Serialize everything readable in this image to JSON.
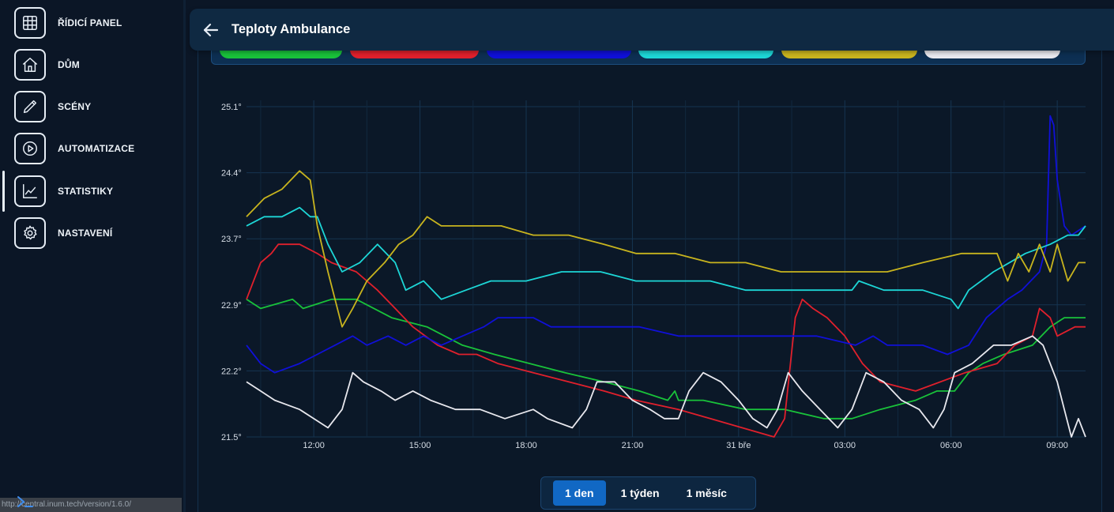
{
  "sidebar": {
    "items": [
      {
        "label": "ŘÍDICÍ PANEL",
        "icon": "grid-icon"
      },
      {
        "label": "DŮM",
        "icon": "home-icon"
      },
      {
        "label": "SCÉNY",
        "icon": "pencil-icon"
      },
      {
        "label": "AUTOMATIZACE",
        "icon": "play-circle-icon"
      },
      {
        "label": "STATISTIKY",
        "icon": "line-chart-icon",
        "active": true
      },
      {
        "label": "NASTAVENÍ",
        "icon": "gear-icon"
      }
    ]
  },
  "status_url": "http://central.inum.tech/version/1.6.0/",
  "header": {
    "title": "Teploty Ambulance"
  },
  "legend_colors": [
    "#19c23a",
    "#e0202c",
    "#1010d8",
    "#1dd6d6",
    "#c8b41e",
    "#e8e8ee"
  ],
  "range": {
    "options": [
      "1 den",
      "1 týden",
      "1 měsíc"
    ],
    "selected": "1 den"
  },
  "chart_data": {
    "type": "line",
    "x_ticks": [
      "12:00",
      "15:00",
      "18:00",
      "21:00",
      "31 bře",
      "03:00",
      "06:00",
      "09:00"
    ],
    "y_ticks": [
      "21.5°",
      "22.2°",
      "22.9°",
      "23.7°",
      "24.4°",
      "25.1°"
    ],
    "ylim": [
      21.5,
      25.1
    ],
    "xlim": [
      10.1,
      33.8
    ],
    "grid": true,
    "series": [
      {
        "color": "#19c23a",
        "points": [
          [
            10.1,
            23.0
          ],
          [
            10.5,
            22.9
          ],
          [
            11.4,
            23.0
          ],
          [
            11.7,
            22.9
          ],
          [
            12.5,
            23.0
          ],
          [
            13.2,
            23.0
          ],
          [
            14.2,
            22.8
          ],
          [
            15.2,
            22.7
          ],
          [
            16.2,
            22.5
          ],
          [
            17.1,
            22.4
          ],
          [
            18.1,
            22.3
          ],
          [
            19.1,
            22.2
          ],
          [
            20.2,
            22.1
          ],
          [
            21.2,
            22.0
          ],
          [
            22.0,
            21.9
          ],
          [
            22.2,
            22.0
          ],
          [
            22.3,
            21.9
          ],
          [
            23.0,
            21.9
          ],
          [
            24.2,
            21.8
          ],
          [
            25.3,
            21.8
          ],
          [
            26.4,
            21.7
          ],
          [
            27.2,
            21.7
          ],
          [
            28.0,
            21.8
          ],
          [
            29.0,
            21.9
          ],
          [
            29.6,
            22.0
          ],
          [
            30.1,
            22.0
          ],
          [
            30.5,
            22.2
          ],
          [
            30.9,
            22.3
          ],
          [
            31.5,
            22.4
          ],
          [
            32.3,
            22.5
          ],
          [
            32.8,
            22.7
          ],
          [
            33.2,
            22.8
          ],
          [
            33.8,
            22.8
          ]
        ]
      },
      {
        "color": "#e0202c",
        "points": [
          [
            10.1,
            23.0
          ],
          [
            10.5,
            23.4
          ],
          [
            10.8,
            23.5
          ],
          [
            11.0,
            23.6
          ],
          [
            11.3,
            23.6
          ],
          [
            11.6,
            23.6
          ],
          [
            12.1,
            23.5
          ],
          [
            12.5,
            23.4
          ],
          [
            13.2,
            23.3
          ],
          [
            13.8,
            23.1
          ],
          [
            14.3,
            22.9
          ],
          [
            14.8,
            22.7
          ],
          [
            15.5,
            22.5
          ],
          [
            16.1,
            22.4
          ],
          [
            16.6,
            22.4
          ],
          [
            17.2,
            22.3
          ],
          [
            18.2,
            22.2
          ],
          [
            19.2,
            22.1
          ],
          [
            20.2,
            22.0
          ],
          [
            21.1,
            21.9
          ],
          [
            22.3,
            21.8
          ],
          [
            23.2,
            21.7
          ],
          [
            24.1,
            21.6
          ],
          [
            25.0,
            21.5
          ],
          [
            25.3,
            21.7
          ],
          [
            25.6,
            22.8
          ],
          [
            25.8,
            23.0
          ],
          [
            26.1,
            22.9
          ],
          [
            26.5,
            22.8
          ],
          [
            27.0,
            22.6
          ],
          [
            27.5,
            22.3
          ],
          [
            28.0,
            22.1
          ],
          [
            29.0,
            22.0
          ],
          [
            30.4,
            22.2
          ],
          [
            31.3,
            22.3
          ],
          [
            31.8,
            22.5
          ],
          [
            32.3,
            22.6
          ],
          [
            32.5,
            22.9
          ],
          [
            32.8,
            22.8
          ],
          [
            33.0,
            22.6
          ],
          [
            33.5,
            22.7
          ],
          [
            33.8,
            22.7
          ]
        ]
      },
      {
        "color": "#1010d8",
        "points": [
          [
            10.1,
            22.5
          ],
          [
            10.5,
            22.3
          ],
          [
            10.9,
            22.2
          ],
          [
            11.6,
            22.3
          ],
          [
            12.1,
            22.4
          ],
          [
            12.6,
            22.5
          ],
          [
            13.1,
            22.6
          ],
          [
            13.5,
            22.5
          ],
          [
            14.1,
            22.6
          ],
          [
            14.6,
            22.5
          ],
          [
            15.1,
            22.6
          ],
          [
            15.6,
            22.5
          ],
          [
            16.2,
            22.6
          ],
          [
            16.8,
            22.7
          ],
          [
            17.2,
            22.8
          ],
          [
            17.6,
            22.8
          ],
          [
            18.2,
            22.8
          ],
          [
            18.7,
            22.7
          ],
          [
            19.3,
            22.7
          ],
          [
            20.2,
            22.7
          ],
          [
            21.2,
            22.7
          ],
          [
            22.3,
            22.6
          ],
          [
            23.2,
            22.6
          ],
          [
            24.3,
            22.6
          ],
          [
            25.2,
            22.6
          ],
          [
            25.6,
            22.6
          ],
          [
            26.2,
            22.6
          ],
          [
            27.3,
            22.5
          ],
          [
            27.8,
            22.6
          ],
          [
            28.2,
            22.5
          ],
          [
            29.2,
            22.5
          ],
          [
            29.9,
            22.4
          ],
          [
            30.5,
            22.5
          ],
          [
            31.0,
            22.8
          ],
          [
            31.3,
            22.9
          ],
          [
            31.6,
            23.0
          ],
          [
            32.0,
            23.1
          ],
          [
            32.5,
            23.3
          ],
          [
            32.7,
            23.6
          ],
          [
            32.8,
            25.0
          ],
          [
            32.9,
            24.9
          ],
          [
            33.0,
            24.3
          ],
          [
            33.2,
            23.8
          ],
          [
            33.4,
            23.7
          ],
          [
            33.8,
            23.8
          ]
        ]
      },
      {
        "color": "#1dd6d6",
        "points": [
          [
            10.1,
            23.8
          ],
          [
            10.6,
            23.9
          ],
          [
            11.1,
            23.9
          ],
          [
            11.6,
            24.0
          ],
          [
            11.9,
            23.9
          ],
          [
            12.1,
            23.9
          ],
          [
            12.4,
            23.6
          ],
          [
            12.8,
            23.3
          ],
          [
            13.3,
            23.4
          ],
          [
            13.8,
            23.6
          ],
          [
            14.3,
            23.4
          ],
          [
            14.6,
            23.1
          ],
          [
            15.1,
            23.2
          ],
          [
            15.6,
            23.0
          ],
          [
            16.3,
            23.1
          ],
          [
            17.0,
            23.2
          ],
          [
            18.0,
            23.2
          ],
          [
            19.0,
            23.3
          ],
          [
            20.1,
            23.3
          ],
          [
            21.1,
            23.2
          ],
          [
            22.1,
            23.2
          ],
          [
            23.2,
            23.2
          ],
          [
            24.2,
            23.1
          ],
          [
            25.2,
            23.1
          ],
          [
            26.3,
            23.1
          ],
          [
            27.2,
            23.1
          ],
          [
            27.4,
            23.2
          ],
          [
            28.1,
            23.1
          ],
          [
            29.2,
            23.1
          ],
          [
            30.0,
            23.0
          ],
          [
            30.2,
            22.9
          ],
          [
            30.5,
            23.1
          ],
          [
            31.2,
            23.3
          ],
          [
            32.1,
            23.5
          ],
          [
            32.8,
            23.6
          ],
          [
            33.3,
            23.7
          ],
          [
            33.6,
            23.7
          ],
          [
            33.8,
            23.8
          ]
        ]
      },
      {
        "color": "#c8b41e",
        "points": [
          [
            10.1,
            23.9
          ],
          [
            10.6,
            24.1
          ],
          [
            11.1,
            24.2
          ],
          [
            11.6,
            24.4
          ],
          [
            11.9,
            24.3
          ],
          [
            12.1,
            23.8
          ],
          [
            12.4,
            23.3
          ],
          [
            12.8,
            22.7
          ],
          [
            13.1,
            22.9
          ],
          [
            13.5,
            23.2
          ],
          [
            14.0,
            23.4
          ],
          [
            14.4,
            23.6
          ],
          [
            14.8,
            23.7
          ],
          [
            15.2,
            23.9
          ],
          [
            15.6,
            23.8
          ],
          [
            16.5,
            23.8
          ],
          [
            17.3,
            23.8
          ],
          [
            18.2,
            23.7
          ],
          [
            19.2,
            23.7
          ],
          [
            20.2,
            23.6
          ],
          [
            21.1,
            23.5
          ],
          [
            22.2,
            23.5
          ],
          [
            23.2,
            23.4
          ],
          [
            24.2,
            23.4
          ],
          [
            25.2,
            23.3
          ],
          [
            26.2,
            23.3
          ],
          [
            27.3,
            23.3
          ],
          [
            28.2,
            23.3
          ],
          [
            29.2,
            23.4
          ],
          [
            30.3,
            23.5
          ],
          [
            30.8,
            23.5
          ],
          [
            31.3,
            23.5
          ],
          [
            31.6,
            23.2
          ],
          [
            31.9,
            23.5
          ],
          [
            32.2,
            23.3
          ],
          [
            32.5,
            23.6
          ],
          [
            32.8,
            23.3
          ],
          [
            33.0,
            23.6
          ],
          [
            33.3,
            23.2
          ],
          [
            33.6,
            23.4
          ],
          [
            33.8,
            23.4
          ]
        ]
      },
      {
        "color": "#e8e8ee",
        "points": [
          [
            10.1,
            22.1
          ],
          [
            10.5,
            22.0
          ],
          [
            10.9,
            21.9
          ],
          [
            11.6,
            21.8
          ],
          [
            12.0,
            21.7
          ],
          [
            12.4,
            21.6
          ],
          [
            12.8,
            21.8
          ],
          [
            13.1,
            22.2
          ],
          [
            13.4,
            22.1
          ],
          [
            13.9,
            22.0
          ],
          [
            14.3,
            21.9
          ],
          [
            14.8,
            22.0
          ],
          [
            15.3,
            21.9
          ],
          [
            16.0,
            21.8
          ],
          [
            16.7,
            21.8
          ],
          [
            17.4,
            21.7
          ],
          [
            18.2,
            21.8
          ],
          [
            18.6,
            21.7
          ],
          [
            19.3,
            21.6
          ],
          [
            19.7,
            21.8
          ],
          [
            20.0,
            22.1
          ],
          [
            20.5,
            22.1
          ],
          [
            21.0,
            21.9
          ],
          [
            21.5,
            21.8
          ],
          [
            21.9,
            21.7
          ],
          [
            22.3,
            21.7
          ],
          [
            22.6,
            22.0
          ],
          [
            23.0,
            22.2
          ],
          [
            23.5,
            22.1
          ],
          [
            24.0,
            21.9
          ],
          [
            24.4,
            21.7
          ],
          [
            24.8,
            21.6
          ],
          [
            25.1,
            21.8
          ],
          [
            25.4,
            22.2
          ],
          [
            25.8,
            22.0
          ],
          [
            26.3,
            21.8
          ],
          [
            26.8,
            21.6
          ],
          [
            27.2,
            21.8
          ],
          [
            27.6,
            22.2
          ],
          [
            28.1,
            22.1
          ],
          [
            28.6,
            21.9
          ],
          [
            29.1,
            21.8
          ],
          [
            29.5,
            21.6
          ],
          [
            29.8,
            21.8
          ],
          [
            30.1,
            22.2
          ],
          [
            30.6,
            22.3
          ],
          [
            31.2,
            22.5
          ],
          [
            31.7,
            22.5
          ],
          [
            32.3,
            22.6
          ],
          [
            32.6,
            22.5
          ],
          [
            32.8,
            22.3
          ],
          [
            33.0,
            22.1
          ],
          [
            33.2,
            21.8
          ],
          [
            33.4,
            21.5
          ],
          [
            33.6,
            21.7
          ],
          [
            33.8,
            21.5
          ]
        ]
      }
    ]
  }
}
